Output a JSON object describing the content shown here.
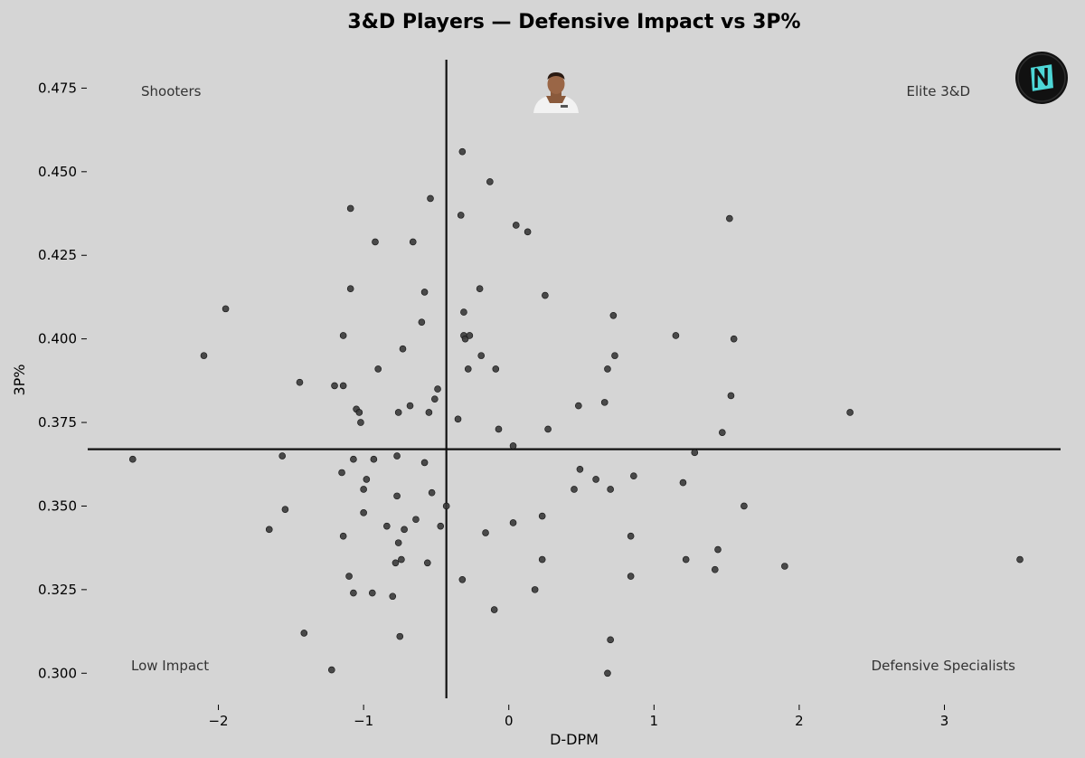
{
  "chart_data": {
    "type": "scatter",
    "title": "3&D Players — Defensive Impact vs 3P%",
    "xlabel": "D-DPM",
    "ylabel": "3P%",
    "xlim": [
      -2.9,
      3.8
    ],
    "ylim": [
      0.2925,
      0.4835
    ],
    "xticks": [
      -2,
      -1,
      0,
      1,
      2,
      3
    ],
    "xtick_labels": [
      "−2",
      "−1",
      "0",
      "1",
      "2",
      "3"
    ],
    "yticks": [
      0.3,
      0.325,
      0.35,
      0.375,
      0.4,
      0.425,
      0.45,
      0.475
    ],
    "ytick_labels": [
      "0.300",
      "0.325",
      "0.350",
      "0.375",
      "0.400",
      "0.425",
      "0.450",
      "0.475"
    ],
    "grid": false,
    "reference_lines": {
      "x_mean": -0.43,
      "y_mean": 0.367
    },
    "quadrant_labels": {
      "top_left": "Shooters",
      "top_right": "Elite 3&D",
      "bottom_left": "Low Impact",
      "bottom_right": "Defensive Specialists"
    },
    "point_color": "#3a3a3a",
    "line_color": "#111111",
    "background_color": "#d5d5d5",
    "logo_colors": {
      "ring": "#111111",
      "fill": "#4dd6d6"
    },
    "points": [
      [
        -2.59,
        0.364
      ],
      [
        -2.1,
        0.395
      ],
      [
        -1.95,
        0.409
      ],
      [
        -1.65,
        0.343
      ],
      [
        -1.56,
        0.365
      ],
      [
        -1.54,
        0.349
      ],
      [
        -1.44,
        0.387
      ],
      [
        -1.41,
        0.312
      ],
      [
        -1.22,
        0.301
      ],
      [
        -1.2,
        0.386
      ],
      [
        -1.15,
        0.36
      ],
      [
        -1.14,
        0.401
      ],
      [
        -1.14,
        0.341
      ],
      [
        -1.14,
        0.386
      ],
      [
        -1.09,
        0.439
      ],
      [
        -1.09,
        0.415
      ],
      [
        -1.1,
        0.329
      ],
      [
        -1.07,
        0.364
      ],
      [
        -1.07,
        0.324
      ],
      [
        -1.05,
        0.379
      ],
      [
        -1.03,
        0.378
      ],
      [
        -1.02,
        0.375
      ],
      [
        -1.0,
        0.355
      ],
      [
        -1.0,
        0.348
      ],
      [
        -0.98,
        0.358
      ],
      [
        -0.94,
        0.324
      ],
      [
        -0.93,
        0.364
      ],
      [
        -0.92,
        0.429
      ],
      [
        -0.9,
        0.391
      ],
      [
        -0.84,
        0.344
      ],
      [
        -0.8,
        0.323
      ],
      [
        -0.78,
        0.333
      ],
      [
        -0.77,
        0.365
      ],
      [
        -0.77,
        0.353
      ],
      [
        -0.76,
        0.378
      ],
      [
        -0.76,
        0.339
      ],
      [
        -0.75,
        0.311
      ],
      [
        -0.74,
        0.334
      ],
      [
        -0.73,
        0.397
      ],
      [
        -0.72,
        0.343
      ],
      [
        -0.68,
        0.38
      ],
      [
        -0.66,
        0.429
      ],
      [
        -0.64,
        0.346
      ],
      [
        -0.6,
        0.405
      ],
      [
        -0.58,
        0.414
      ],
      [
        -0.58,
        0.363
      ],
      [
        -0.56,
        0.333
      ],
      [
        -0.55,
        0.378
      ],
      [
        -0.54,
        0.442
      ],
      [
        -0.53,
        0.354
      ],
      [
        -0.51,
        0.382
      ],
      [
        -0.49,
        0.385
      ],
      [
        -0.47,
        0.344
      ],
      [
        -0.43,
        0.35
      ],
      [
        -0.35,
        0.376
      ],
      [
        -0.33,
        0.437
      ],
      [
        -0.32,
        0.456
      ],
      [
        -0.32,
        0.328
      ],
      [
        -0.31,
        0.408
      ],
      [
        -0.31,
        0.401
      ],
      [
        -0.3,
        0.4
      ],
      [
        -0.28,
        0.391
      ],
      [
        -0.27,
        0.401
      ],
      [
        -0.2,
        0.415
      ],
      [
        -0.19,
        0.395
      ],
      [
        -0.16,
        0.342
      ],
      [
        -0.13,
        0.447
      ],
      [
        -0.1,
        0.319
      ],
      [
        -0.09,
        0.391
      ],
      [
        -0.07,
        0.373
      ],
      [
        0.03,
        0.345
      ],
      [
        0.03,
        0.368
      ],
      [
        0.05,
        0.434
      ],
      [
        0.13,
        0.432
      ],
      [
        0.18,
        0.325
      ],
      [
        0.23,
        0.347
      ],
      [
        0.23,
        0.334
      ],
      [
        0.25,
        0.413
      ],
      [
        0.27,
        0.373
      ],
      [
        0.45,
        0.355
      ],
      [
        0.48,
        0.38
      ],
      [
        0.49,
        0.361
      ],
      [
        0.6,
        0.358
      ],
      [
        0.66,
        0.381
      ],
      [
        0.68,
        0.3
      ],
      [
        0.68,
        0.391
      ],
      [
        0.7,
        0.31
      ],
      [
        0.7,
        0.355
      ],
      [
        0.72,
        0.407
      ],
      [
        0.73,
        0.395
      ],
      [
        0.84,
        0.329
      ],
      [
        0.84,
        0.341
      ],
      [
        0.86,
        0.359
      ],
      [
        1.15,
        0.401
      ],
      [
        1.2,
        0.357
      ],
      [
        1.22,
        0.334
      ],
      [
        1.28,
        0.366
      ],
      [
        1.42,
        0.331
      ],
      [
        1.44,
        0.337
      ],
      [
        1.47,
        0.372
      ],
      [
        1.52,
        0.436
      ],
      [
        1.53,
        0.383
      ],
      [
        1.55,
        0.4
      ],
      [
        1.62,
        0.35
      ],
      [
        1.9,
        0.332
      ],
      [
        2.35,
        0.378
      ],
      [
        3.52,
        0.334
      ]
    ]
  }
}
